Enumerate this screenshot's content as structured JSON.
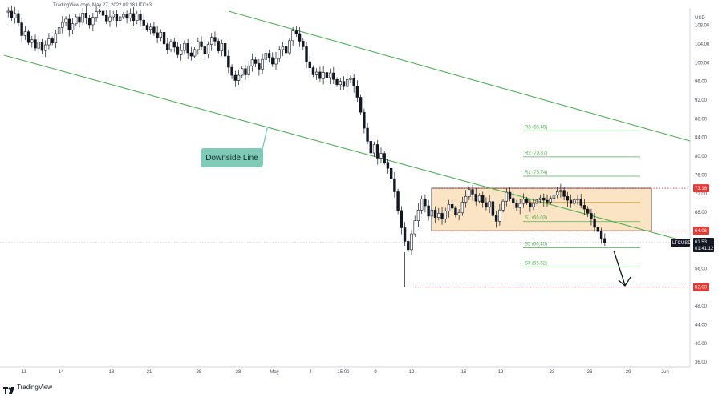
{
  "header": {
    "caption": "TradingView.com, May 27, 2022 09:18 UTC+3"
  },
  "branding": {
    "name": "TradingView",
    "logo_icon": "tradingview-logo-icon"
  },
  "annotation": {
    "downside_label": "Downside Line"
  },
  "price_badges": {
    "symbol": "LTCUSD",
    "last_price": "61.53",
    "countdown": "01:41:12",
    "upper_level": "73.16",
    "lower_level": "64.06",
    "target_level": "52.00"
  },
  "colors": {
    "up_candle": "#131722",
    "down_candle": "#131722",
    "trendline": "#4caf50",
    "pivot": "#4caf50",
    "pivot_mid": "#e0a020",
    "range_fill": "#fbe4c4",
    "range_border": "#131722",
    "level_badge": "#e53935",
    "current_badge": "#131722",
    "callout": "#7fcbb8"
  },
  "chart_data": {
    "type": "candlestick",
    "y_axis": {
      "unit_label": "USD",
      "ticks": [
        "108.00",
        "104.00",
        "100.00",
        "96.00",
        "92.00",
        "88.00",
        "84.00",
        "80.00",
        "76.00",
        "72.00",
        "68.00",
        "64.00",
        "60.00",
        "56.00",
        "52.00",
        "48.00",
        "44.00",
        "40.00",
        "36.00"
      ],
      "range": [
        35,
        111
      ]
    },
    "x_axis": {
      "ticks": [
        "11",
        "14",
        "18",
        "21",
        "25",
        "28",
        "May",
        "4",
        "15:00",
        "9",
        "12",
        "16",
        "19",
        "23",
        "26",
        "29",
        "Jun"
      ]
    },
    "pivots": [
      {
        "label": "R3 (85.45)",
        "value": 85.45
      },
      {
        "label": "R2 (79.87)",
        "value": 79.87
      },
      {
        "label": "R1 (75.74)",
        "value": 75.74
      },
      {
        "label": "S1 (66.03)",
        "value": 66.03
      },
      {
        "label": "S2 (60.45)",
        "value": 60.45
      },
      {
        "label": "S3 (56.32)",
        "value": 56.32
      }
    ],
    "pivot_point": 70.16,
    "range_box": {
      "high": 73.16,
      "low": 64.06
    },
    "levels": [
      73.16,
      64.06,
      52.0
    ],
    "current_price": 61.53,
    "price_path": [
      [
        0,
        110.8
      ],
      [
        0.5,
        111.0
      ],
      [
        1,
        109.6
      ],
      [
        1.5,
        110.5
      ],
      [
        2,
        108.5
      ],
      [
        2.5,
        105.8
      ],
      [
        3,
        106.6
      ],
      [
        3.5,
        104.3
      ],
      [
        4,
        104.9
      ],
      [
        4.5,
        103.1
      ],
      [
        5,
        104.4
      ],
      [
        5.5,
        102.6
      ],
      [
        6,
        103.8
      ],
      [
        6.5,
        105.1
      ],
      [
        7,
        104.2
      ],
      [
        7.5,
        106.2
      ],
      [
        8,
        107.5
      ],
      [
        8.5,
        108.6
      ],
      [
        9,
        109.3
      ],
      [
        9.5,
        107.0
      ],
      [
        10,
        108.3
      ],
      [
        10.5,
        109.8
      ],
      [
        11,
        108.6
      ],
      [
        11.5,
        110.6
      ],
      [
        12,
        109.5
      ],
      [
        12.5,
        108.1
      ],
      [
        13,
        109.7
      ],
      [
        13.5,
        110.9
      ],
      [
        14,
        111.0
      ],
      [
        14.5,
        110.1
      ],
      [
        15,
        108.9
      ],
      [
        15.5,
        109.8
      ],
      [
        16,
        110.4
      ],
      [
        16.5,
        109.0
      ],
      [
        17,
        109.8
      ],
      [
        17.5,
        110.3
      ],
      [
        18,
        109.5
      ],
      [
        18.5,
        110.5
      ],
      [
        19,
        109.0
      ],
      [
        19.5,
        110.4
      ],
      [
        20,
        109.1
      ],
      [
        20.5,
        108.0
      ],
      [
        21,
        107.1
      ],
      [
        21.5,
        107.6
      ],
      [
        22,
        106.4
      ],
      [
        22.5,
        105.4
      ],
      [
        23,
        106.5
      ],
      [
        23.5,
        104.0
      ],
      [
        24,
        102.8
      ],
      [
        24.5,
        104.5
      ],
      [
        25,
        103.3
      ],
      [
        25.5,
        101.7
      ],
      [
        26,
        102.6
      ],
      [
        26.5,
        104.1
      ],
      [
        27,
        102.1
      ],
      [
        27.5,
        101.4
      ],
      [
        28,
        102.8
      ],
      [
        28.5,
        104.5
      ],
      [
        29,
        103.4
      ],
      [
        29.5,
        101.8
      ],
      [
        30,
        103.9
      ],
      [
        30.5,
        105.4
      ],
      [
        31,
        104.6
      ],
      [
        31.5,
        102.5
      ],
      [
        32,
        104.1
      ],
      [
        32.5,
        101.4
      ],
      [
        33,
        99.0
      ],
      [
        33.5,
        97.3
      ],
      [
        34,
        96.2
      ],
      [
        34.5,
        97.3
      ],
      [
        35,
        98.7
      ],
      [
        35.5,
        97.4
      ],
      [
        36,
        99.3
      ],
      [
        36.5,
        100.6
      ],
      [
        37,
        99.8
      ],
      [
        37.5,
        98.6
      ],
      [
        38,
        100.7
      ],
      [
        38.5,
        102.0
      ],
      [
        39,
        101.1
      ],
      [
        39.5,
        99.7
      ],
      [
        40,
        100.9
      ],
      [
        40.5,
        102.8
      ],
      [
        41,
        103.4
      ],
      [
        41.5,
        102.1
      ],
      [
        42,
        104.7
      ],
      [
        42.5,
        106.8
      ],
      [
        43,
        106.2
      ],
      [
        43.5,
        104.6
      ],
      [
        44,
        103.4
      ],
      [
        44.5,
        100.2
      ],
      [
        45,
        98.9
      ],
      [
        45.5,
        97.4
      ],
      [
        46,
        98.0
      ],
      [
        46.5,
        96.6
      ],
      [
        47,
        97.9
      ],
      [
        47.5,
        96.8
      ],
      [
        48,
        97.8
      ],
      [
        48.5,
        96.4
      ],
      [
        49,
        95.3
      ],
      [
        49.5,
        96.0
      ],
      [
        50,
        94.9
      ],
      [
        50.5,
        96.4
      ],
      [
        51,
        96.6
      ],
      [
        51.5,
        95.0
      ],
      [
        52,
        92.6
      ],
      [
        52.5,
        89.4
      ],
      [
        53,
        86.0
      ],
      [
        53.5,
        83.2
      ],
      [
        54,
        80.7
      ],
      [
        54.5,
        82.5
      ],
      [
        55,
        79.6
      ],
      [
        55.5,
        80.6
      ],
      [
        56,
        78.7
      ],
      [
        56.5,
        77.4
      ],
      [
        57,
        75.2
      ],
      [
        57.5,
        72.4
      ],
      [
        58,
        68.4
      ],
      [
        58.5,
        64.7
      ],
      [
        59,
        61.8
      ],
      [
        59.5,
        60.0
      ],
      [
        60,
        63.4
      ],
      [
        60.5,
        66.2
      ],
      [
        61,
        68.5
      ],
      [
        61.5,
        70.9
      ],
      [
        62,
        69.4
      ],
      [
        62.5,
        67.2
      ],
      [
        63,
        68.5
      ],
      [
        63.5,
        66.9
      ],
      [
        64,
        67.8
      ],
      [
        64.5,
        66.6
      ],
      [
        65,
        68.3
      ],
      [
        65.5,
        69.7
      ],
      [
        66,
        68.9
      ],
      [
        66.5,
        67.4
      ],
      [
        67,
        67.9
      ],
      [
        67.5,
        70.2
      ],
      [
        68,
        71.4
      ],
      [
        68.5,
        72.9
      ],
      [
        69,
        71.9
      ],
      [
        69.5,
        70.4
      ],
      [
        70,
        71.6
      ],
      [
        70.5,
        70.1
      ],
      [
        71,
        69.1
      ],
      [
        71.5,
        70.3
      ],
      [
        72,
        67.3
      ],
      [
        72.5,
        66.1
      ],
      [
        73,
        68.5
      ],
      [
        73.5,
        70.4
      ],
      [
        74,
        72.3
      ],
      [
        74.5,
        71.0
      ],
      [
        75,
        70.0
      ],
      [
        75.5,
        69.0
      ],
      [
        76,
        69.9
      ],
      [
        76.5,
        70.8
      ],
      [
        77,
        70.1
      ],
      [
        77.5,
        69.2
      ],
      [
        78,
        69.9
      ],
      [
        78.5,
        70.7
      ],
      [
        79,
        71.1
      ],
      [
        79.5,
        70.6
      ],
      [
        80,
        70.2
      ],
      [
        80.5,
        71.0
      ],
      [
        81,
        71.7
      ],
      [
        81.5,
        72.4
      ],
      [
        82,
        72.7
      ],
      [
        82.5,
        71.4
      ],
      [
        83,
        70.6
      ],
      [
        83.5,
        69.9
      ],
      [
        84,
        70.7
      ],
      [
        84.5,
        70.9
      ],
      [
        85,
        69.5
      ],
      [
        85.5,
        68.7
      ],
      [
        86,
        67.8
      ],
      [
        86.5,
        66.6
      ],
      [
        87,
        64.8
      ],
      [
        87.5,
        63.9
      ],
      [
        88,
        62.4
      ],
      [
        88.5,
        61.5
      ]
    ]
  }
}
